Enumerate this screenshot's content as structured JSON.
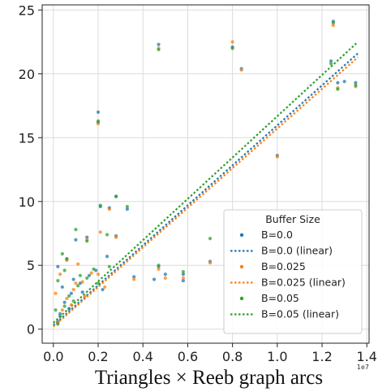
{
  "chart_data": {
    "type": "scatter",
    "xlabel": "Triangles × Reeb graph arcs",
    "x_offset_label": "1e7",
    "xlim": [
      -0.05,
      1.41
    ],
    "ylim": [
      -1.1,
      25.4
    ],
    "x_ticks": [
      0.0,
      0.2,
      0.4,
      0.6,
      0.8,
      1.0,
      1.2,
      1.4
    ],
    "x_tick_labels": [
      "0.0",
      "0.2",
      "0.4",
      "0.6",
      "0.8",
      "1.0",
      "1.2",
      "1.4"
    ],
    "y_ticks": [
      0,
      5,
      10,
      15,
      20,
      25
    ],
    "y_tick_labels": [
      "0",
      "5",
      "10",
      "15",
      "20",
      "25"
    ],
    "grid": true,
    "legend": {
      "title": "Buffer Size",
      "placement": "lower-right",
      "entries": [
        "B=0.0",
        "B=0.0 (linear)",
        "B=0.025",
        "B=0.025 (linear)",
        "B=0.05",
        "B=0.05 (linear)"
      ]
    },
    "colors": {
      "b0": "#1f77b4",
      "b025": "#ff7f0e",
      "b05": "#2ca02c"
    },
    "series": [
      {
        "name": "B=0.0",
        "color": "#1f77b4",
        "points": [
          [
            0.2,
            17.0
          ],
          [
            0.2,
            16.2
          ],
          [
            0.47,
            22.3
          ],
          [
            0.8,
            22.1
          ],
          [
            0.84,
            20.4
          ],
          [
            1.0,
            13.6
          ],
          [
            1.25,
            24.1
          ],
          [
            1.24,
            21.0
          ],
          [
            1.27,
            19.3
          ],
          [
            1.3,
            19.4
          ],
          [
            1.35,
            19.3
          ],
          [
            0.21,
            9.6
          ],
          [
            0.25,
            9.5
          ],
          [
            0.28,
            10.4
          ],
          [
            0.33,
            9.4
          ],
          [
            0.28,
            7.3
          ],
          [
            0.24,
            5.7
          ],
          [
            0.15,
            7.2
          ],
          [
            0.1,
            7.0
          ],
          [
            0.06,
            5.5
          ],
          [
            0.47,
            4.9
          ],
          [
            0.5,
            4.3
          ],
          [
            0.58,
            4.3
          ],
          [
            0.7,
            5.3
          ],
          [
            0.45,
            3.9
          ],
          [
            0.58,
            3.8
          ],
          [
            0.36,
            4.1
          ],
          [
            0.02,
            0.6
          ],
          [
            0.03,
            1.2
          ],
          [
            0.05,
            2.1
          ],
          [
            0.08,
            2.8
          ],
          [
            0.12,
            3.6
          ],
          [
            0.16,
            4.2
          ],
          [
            0.02,
            4.9
          ],
          [
            0.04,
            3.3
          ],
          [
            0.09,
            3.9
          ],
          [
            0.13,
            2.9
          ],
          [
            0.19,
            4.6
          ],
          [
            0.22,
            3.1
          ],
          [
            0.07,
            1.6
          ]
        ]
      },
      {
        "name": "B=0.025",
        "color": "#ff7f0e",
        "points": [
          [
            0.2,
            16.1
          ],
          [
            0.47,
            22.0
          ],
          [
            0.8,
            22.5
          ],
          [
            0.84,
            20.3
          ],
          [
            1.0,
            13.5
          ],
          [
            1.25,
            23.8
          ],
          [
            1.27,
            18.9
          ],
          [
            1.35,
            19.0
          ],
          [
            0.21,
            7.6
          ],
          [
            0.25,
            9.4
          ],
          [
            0.28,
            7.2
          ],
          [
            0.15,
            7.0
          ],
          [
            0.06,
            5.4
          ],
          [
            0.47,
            4.7
          ],
          [
            0.5,
            4.0
          ],
          [
            0.7,
            5.2
          ],
          [
            0.58,
            4.0
          ],
          [
            0.36,
            3.9
          ],
          [
            0.02,
            0.5
          ],
          [
            0.04,
            1.5
          ],
          [
            0.06,
            2.4
          ],
          [
            0.09,
            3.1
          ],
          [
            0.13,
            3.7
          ],
          [
            0.17,
            4.4
          ],
          [
            0.03,
            4.3
          ],
          [
            0.1,
            3.6
          ],
          [
            0.14,
            2.6
          ],
          [
            0.2,
            4.3
          ],
          [
            0.23,
            3.3
          ],
          [
            0.08,
            1.9
          ],
          [
            0.11,
            5.1
          ],
          [
            0.01,
            2.8
          ]
        ]
      },
      {
        "name": "B=0.05",
        "color": "#2ca02c",
        "points": [
          [
            0.2,
            16.3
          ],
          [
            0.47,
            21.9
          ],
          [
            0.8,
            22.0
          ],
          [
            1.24,
            20.8
          ],
          [
            1.25,
            24.0
          ],
          [
            1.27,
            18.8
          ],
          [
            1.35,
            19.1
          ],
          [
            0.21,
            9.7
          ],
          [
            0.28,
            10.4
          ],
          [
            0.33,
            9.6
          ],
          [
            0.24,
            7.4
          ],
          [
            0.1,
            7.8
          ],
          [
            0.15,
            6.9
          ],
          [
            0.06,
            5.5
          ],
          [
            0.47,
            5.0
          ],
          [
            0.7,
            7.1
          ],
          [
            0.58,
            4.5
          ],
          [
            0.02,
            0.4
          ],
          [
            0.03,
            1.0
          ],
          [
            0.05,
            1.8
          ],
          [
            0.07,
            2.6
          ],
          [
            0.11,
            3.4
          ],
          [
            0.15,
            4.0
          ],
          [
            0.18,
            4.7
          ],
          [
            0.02,
            3.8
          ],
          [
            0.05,
            4.6
          ],
          [
            0.12,
            4.2
          ],
          [
            0.09,
            2.2
          ],
          [
            0.2,
            3.6
          ],
          [
            0.25,
            4.9
          ],
          [
            0.01,
            1.5
          ],
          [
            0.04,
            5.9
          ]
        ]
      }
    ],
    "lines": [
      {
        "name": "B=0.0 (linear)",
        "color": "#1f77b4",
        "x": [
          0.0,
          1.36
        ],
        "y": [
          0.3,
          21.6
        ]
      },
      {
        "name": "B=0.025 (linear)",
        "color": "#ff7f0e",
        "x": [
          0.0,
          1.36
        ],
        "y": [
          0.2,
          21.3
        ]
      },
      {
        "name": "B=0.05 (linear)",
        "color": "#2ca02c",
        "x": [
          0.0,
          1.36
        ],
        "y": [
          0.5,
          22.5
        ]
      }
    ]
  }
}
